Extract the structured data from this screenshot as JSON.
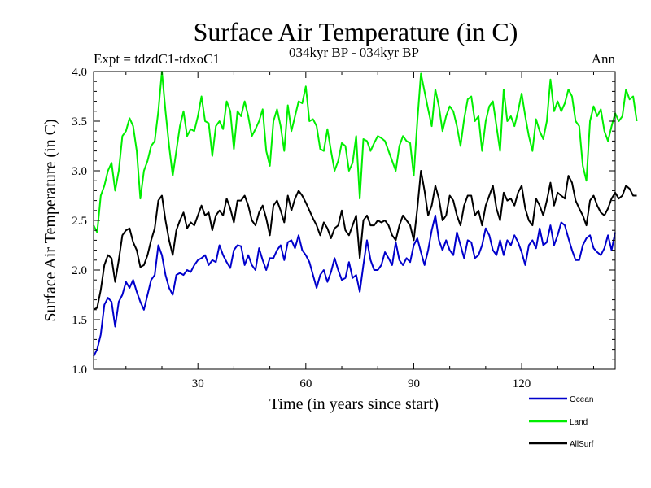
{
  "chart_data": {
    "type": "line",
    "title": "Surface Air Temperature (in C)",
    "subtitle": "034kyr BP - 034kyr BP",
    "left_label": "Expt = tdzdC1-tdxoC1",
    "right_label": "Ann",
    "xlabel": "Time (in years since start)",
    "ylabel": "Surface Air Temperature (in C)",
    "xlim": [
      1,
      146
    ],
    "ylim": [
      1.0,
      4.0
    ],
    "x_ticks": [
      30,
      60,
      90,
      120
    ],
    "y_ticks": [
      1.0,
      1.5,
      2.0,
      2.5,
      3.0,
      3.5,
      4.0
    ],
    "y_tick_labels": [
      "1.0",
      "1.5",
      "2.0",
      "2.5",
      "3.0",
      "3.5",
      "4.0"
    ],
    "grid": false,
    "legend_position": "bottom-right",
    "series": [
      {
        "name": "Ocean",
        "color": "#0000cc",
        "values": [
          1.13,
          1.2,
          1.35,
          1.65,
          1.72,
          1.68,
          1.43,
          1.68,
          1.75,
          1.88,
          1.82,
          1.9,
          1.78,
          1.68,
          1.6,
          1.75,
          1.9,
          1.95,
          2.25,
          2.15,
          1.95,
          1.82,
          1.75,
          1.95,
          1.97,
          1.95,
          2.0,
          1.98,
          2.05,
          2.1,
          2.12,
          2.15,
          2.05,
          2.1,
          2.08,
          2.25,
          2.15,
          2.08,
          2.02,
          2.2,
          2.25,
          2.24,
          2.05,
          2.15,
          2.05,
          2.0,
          2.22,
          2.1,
          2.0,
          2.12,
          2.12,
          2.2,
          2.25,
          2.1,
          2.28,
          2.3,
          2.22,
          2.35,
          2.2,
          2.15,
          2.08,
          1.95,
          1.82,
          1.95,
          2.0,
          1.88,
          1.98,
          2.12,
          2.0,
          1.9,
          1.92,
          2.08,
          1.92,
          1.95,
          1.78,
          2.05,
          2.3,
          2.1,
          2.0,
          2.0,
          2.05,
          2.18,
          2.12,
          2.05,
          2.28,
          2.1,
          2.05,
          2.12,
          2.08,
          2.25,
          2.32,
          2.18,
          2.05,
          2.2,
          2.4,
          2.55,
          2.3,
          2.2,
          2.3,
          2.2,
          2.15,
          2.38,
          2.25,
          2.12,
          2.3,
          2.28,
          2.12,
          2.15,
          2.25,
          2.42,
          2.35,
          2.2,
          2.15,
          2.3,
          2.15,
          2.3,
          2.25,
          2.35,
          2.28,
          2.18,
          2.05,
          2.25,
          2.3,
          2.22,
          2.42,
          2.25,
          2.28,
          2.45,
          2.25,
          2.35,
          2.48,
          2.45,
          2.32,
          2.2,
          2.1,
          2.1,
          2.25,
          2.32,
          2.35,
          2.22,
          2.18,
          2.15,
          2.22,
          2.35,
          2.2,
          2.38
        ]
      },
      {
        "name": "Land",
        "color": "#00ee00",
        "values": [
          2.45,
          2.38,
          2.75,
          2.85,
          3.0,
          3.08,
          2.8,
          3.0,
          3.35,
          3.4,
          3.53,
          3.45,
          3.2,
          2.72,
          3.0,
          3.1,
          3.25,
          3.3,
          3.6,
          4.0,
          3.6,
          3.25,
          2.95,
          3.2,
          3.45,
          3.6,
          3.35,
          3.42,
          3.4,
          3.55,
          3.75,
          3.5,
          3.48,
          3.15,
          3.45,
          3.5,
          3.42,
          3.7,
          3.6,
          3.22,
          3.6,
          3.55,
          3.7,
          3.55,
          3.35,
          3.42,
          3.5,
          3.62,
          3.2,
          3.05,
          3.5,
          3.62,
          3.45,
          3.2,
          3.66,
          3.4,
          3.55,
          3.7,
          3.68,
          3.85,
          3.5,
          3.52,
          3.45,
          3.22,
          3.2,
          3.42,
          3.2,
          3.0,
          3.1,
          3.28,
          3.25,
          3.0,
          3.08,
          3.35,
          2.72,
          3.32,
          3.3,
          3.2,
          3.28,
          3.35,
          3.33,
          3.3,
          3.2,
          3.1,
          3.0,
          3.25,
          3.35,
          3.3,
          3.28,
          2.95,
          3.5,
          3.98,
          3.8,
          3.62,
          3.45,
          3.82,
          3.65,
          3.4,
          3.55,
          3.65,
          3.6,
          3.45,
          3.25,
          3.52,
          3.72,
          3.75,
          3.5,
          3.55,
          3.2,
          3.5,
          3.65,
          3.7,
          3.45,
          3.2,
          3.82,
          3.5,
          3.55,
          3.45,
          3.6,
          3.78,
          3.55,
          3.35,
          3.2,
          3.52,
          3.4,
          3.32,
          3.5,
          3.92,
          3.6,
          3.7,
          3.6,
          3.68,
          3.82,
          3.75,
          3.5,
          3.45,
          3.05,
          2.9,
          3.5,
          3.65,
          3.55,
          3.62,
          3.4,
          3.3,
          3.45,
          3.58,
          3.5,
          3.55,
          3.82,
          3.72,
          3.75,
          3.5
        ]
      },
      {
        "name": "AllSurf",
        "color": "#000000",
        "values": [
          1.6,
          1.62,
          1.8,
          2.05,
          2.15,
          2.12,
          1.88,
          2.1,
          2.35,
          2.4,
          2.42,
          2.28,
          2.2,
          2.03,
          2.05,
          2.15,
          2.3,
          2.42,
          2.7,
          2.75,
          2.5,
          2.3,
          2.15,
          2.4,
          2.5,
          2.58,
          2.42,
          2.48,
          2.45,
          2.55,
          2.65,
          2.55,
          2.58,
          2.4,
          2.55,
          2.6,
          2.55,
          2.72,
          2.62,
          2.48,
          2.7,
          2.7,
          2.75,
          2.65,
          2.5,
          2.45,
          2.58,
          2.65,
          2.52,
          2.35,
          2.65,
          2.7,
          2.6,
          2.48,
          2.75,
          2.6,
          2.72,
          2.8,
          2.75,
          2.68,
          2.6,
          2.52,
          2.45,
          2.35,
          2.48,
          2.42,
          2.32,
          2.42,
          2.45,
          2.6,
          2.4,
          2.35,
          2.45,
          2.55,
          2.12,
          2.5,
          2.55,
          2.45,
          2.45,
          2.5,
          2.48,
          2.5,
          2.45,
          2.35,
          2.3,
          2.45,
          2.55,
          2.5,
          2.45,
          2.3,
          2.62,
          3.0,
          2.8,
          2.55,
          2.65,
          2.85,
          2.72,
          2.5,
          2.55,
          2.75,
          2.7,
          2.55,
          2.45,
          2.65,
          2.75,
          2.75,
          2.55,
          2.6,
          2.45,
          2.65,
          2.75,
          2.85,
          2.62,
          2.5,
          2.78,
          2.7,
          2.72,
          2.65,
          2.78,
          2.85,
          2.62,
          2.5,
          2.45,
          2.72,
          2.65,
          2.55,
          2.7,
          2.88,
          2.65,
          2.78,
          2.75,
          2.72,
          2.95,
          2.88,
          2.7,
          2.62,
          2.55,
          2.45,
          2.7,
          2.75,
          2.65,
          2.58,
          2.55,
          2.62,
          2.72,
          2.78,
          2.72,
          2.75,
          2.85,
          2.82,
          2.75,
          2.75
        ]
      }
    ]
  }
}
